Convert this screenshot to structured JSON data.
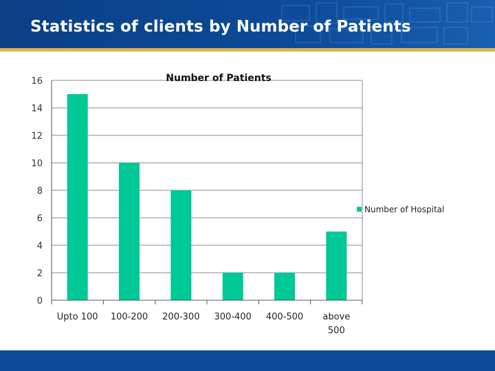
{
  "slide": {
    "title": "Statistics of clients by Number of Patients",
    "header_color": "#0d4a98",
    "accent_line_color": "#d8b64a",
    "footer_color": "#0d4a98"
  },
  "chart_data": {
    "type": "bar",
    "title": "Number of Patients",
    "xlabel": "",
    "ylabel": "",
    "categories": [
      [
        "Upto 100"
      ],
      [
        "100-200"
      ],
      [
        "200-300"
      ],
      [
        "300-400"
      ],
      [
        "400-500"
      ],
      [
        "above",
        "500"
      ]
    ],
    "series": [
      {
        "name": "Number of Hospital",
        "values": [
          15,
          10,
          8,
          2,
          2,
          5
        ],
        "color": "#00c896"
      }
    ],
    "ylim": [
      0,
      16
    ],
    "yticks": [
      0,
      2,
      4,
      6,
      8,
      10,
      12,
      14,
      16
    ],
    "grid": true,
    "legend": "right"
  }
}
